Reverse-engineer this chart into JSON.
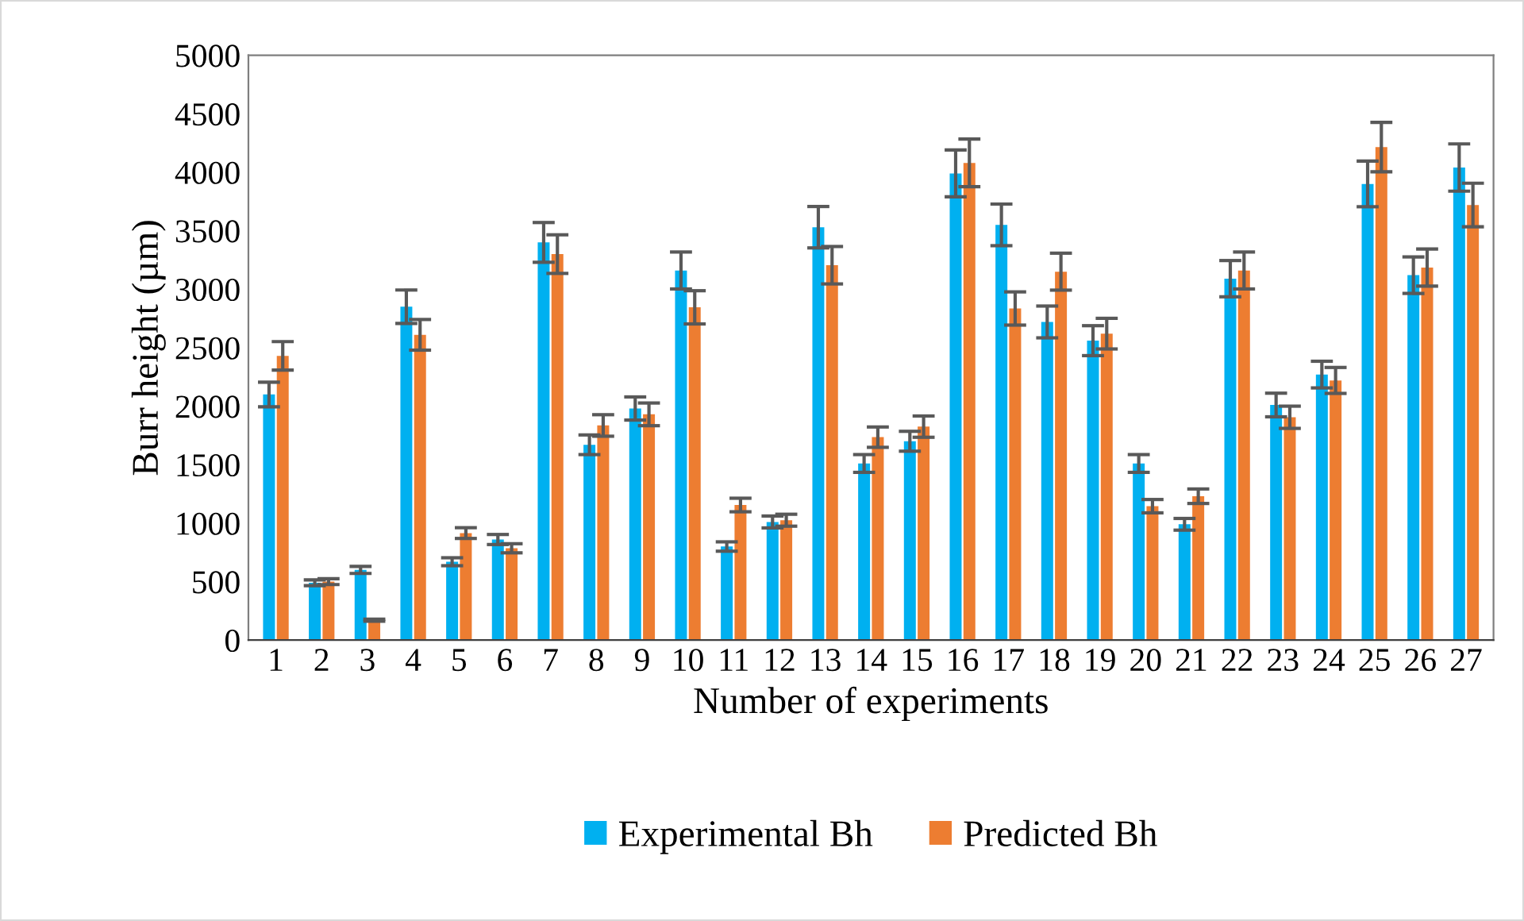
{
  "chart_data": {
    "type": "bar",
    "xlabel": "Number of experiments",
    "ylabel": "Burr height (µm)",
    "categories": [
      "1",
      "2",
      "3",
      "4",
      "5",
      "6",
      "7",
      "8",
      "9",
      "10",
      "11",
      "12",
      "13",
      "14",
      "15",
      "16",
      "17",
      "18",
      "19",
      "20",
      "21",
      "22",
      "23",
      "24",
      "25",
      "26",
      "27"
    ],
    "series": [
      {
        "name": "Experimental Bh",
        "color": "#00b0f0",
        "values": [
          2100,
          490,
          600,
          2850,
          670,
          860,
          3400,
          1670,
          1980,
          3160,
          800,
          1010,
          3530,
          1510,
          1700,
          3990,
          3550,
          2720,
          2560,
          1510,
          990,
          3090,
          2010,
          2270,
          3900,
          3120,
          4040
        ],
        "errors": [
          105,
          25,
          30,
          143,
          34,
          43,
          170,
          84,
          99,
          158,
          40,
          51,
          177,
          76,
          85,
          200,
          178,
          136,
          128,
          76,
          50,
          155,
          101,
          114,
          195,
          156,
          202
        ]
      },
      {
        "name": "Predicted Bh",
        "color": "#ed7d31",
        "values": [
          2430,
          500,
          170,
          2610,
          915,
          785,
          3300,
          1835,
          1930,
          2845,
          1155,
          1025,
          3205,
          1735,
          1825,
          4080,
          2835,
          3150,
          2620,
          1145,
          1230,
          3160,
          1905,
          2220,
          4215,
          3185,
          3720
        ],
        "errors": [
          122,
          25,
          9,
          131,
          46,
          39,
          165,
          92,
          97,
          142,
          58,
          51,
          160,
          87,
          91,
          204,
          142,
          158,
          131,
          57,
          62,
          158,
          95,
          111,
          211,
          159,
          186
        ]
      }
    ],
    "ylim": [
      0,
      5000
    ],
    "yticks": [
      0,
      500,
      1000,
      1500,
      2000,
      2500,
      3000,
      3500,
      4000,
      4500,
      5000
    ],
    "grid": false,
    "legend": "bottom"
  }
}
